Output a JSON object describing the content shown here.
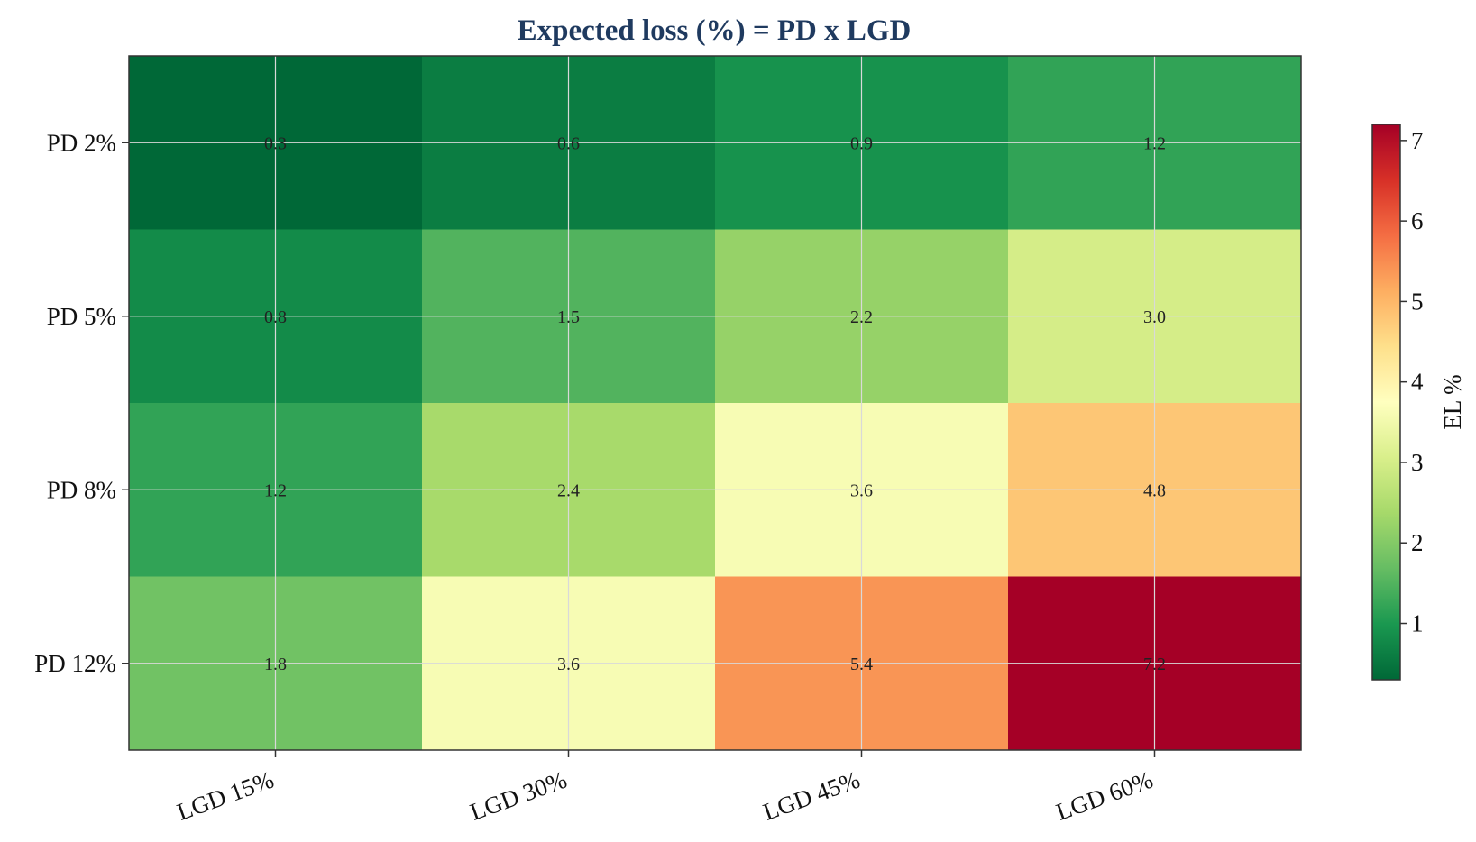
{
  "chart_data": {
    "type": "heatmap",
    "title": "Expected loss (%) = PD x LGD",
    "x_categories": [
      "LGD 15%",
      "LGD 30%",
      "LGD 45%",
      "LGD 60%"
    ],
    "y_categories": [
      "PD 2%",
      "PD 5%",
      "PD 8%",
      "PD 12%"
    ],
    "values": [
      [
        0.3,
        0.6,
        0.9,
        1.2
      ],
      [
        0.8,
        1.5,
        2.2,
        3.0
      ],
      [
        1.2,
        2.4,
        3.6,
        4.8
      ],
      [
        1.8,
        3.6,
        5.4,
        7.2
      ]
    ],
    "cell_labels": [
      [
        "0.3",
        "0.6",
        "0.9",
        "1.2"
      ],
      [
        "0.8",
        "1.5",
        "2.2",
        "3.0"
      ],
      [
        "1.2",
        "2.4",
        "3.6",
        "4.8"
      ],
      [
        "1.8",
        "3.6",
        "5.4",
        "7.2"
      ]
    ],
    "colormap": "RdYlGn_r",
    "color_range": [
      0.3,
      7.2
    ],
    "colorbar": {
      "label": "EL %",
      "ticks": [
        1,
        2,
        3,
        4,
        5,
        6,
        7
      ],
      "tick_labels": [
        "1",
        "2",
        "3",
        "4",
        "5",
        "6",
        "7"
      ]
    },
    "grid": true
  },
  "colors": {
    "title": "#1f3a5f",
    "grid": "#d9d9d9",
    "frame": "#333333"
  }
}
